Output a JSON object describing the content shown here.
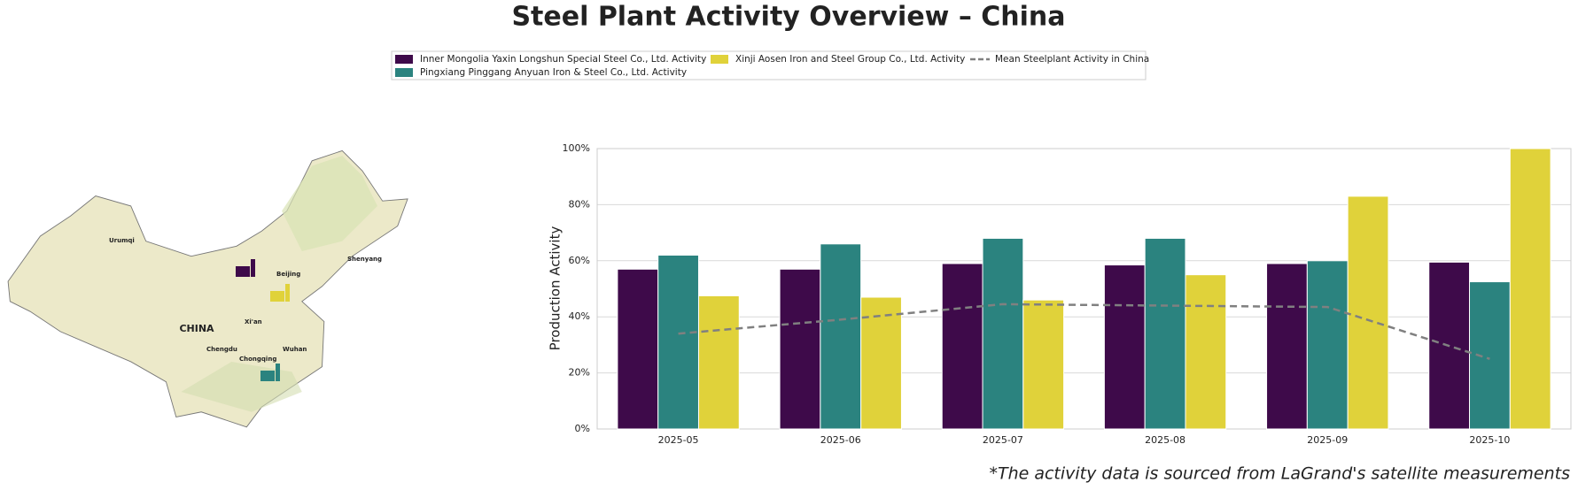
{
  "chart_data": {
    "type": "bar",
    "title": "Steel Plant Activity Overview – China",
    "y_label": "Production Activity",
    "categories": [
      "2025-05",
      "2025-06",
      "2025-07",
      "2025-08",
      "2025-09",
      "2025-10"
    ],
    "series": [
      {
        "name": "Inner Mongolia Yaxin Longshun Special Steel Co., Ltd. Activity",
        "color": "#3e0a4a",
        "values": [
          57,
          57,
          59,
          58.5,
          59,
          59.5
        ]
      },
      {
        "name": "Pingxiang Pinggang Anyuan Iron & Steel Co., Ltd. Activity",
        "color": "#2b837f",
        "values": [
          62,
          66,
          68,
          68,
          60,
          52.5
        ]
      },
      {
        "name": "Xinji Aosen Iron and Steel Group Co., Ltd. Activity",
        "color": "#e0d23a",
        "values": [
          47.5,
          47,
          46,
          55,
          83,
          100
        ]
      },
      {
        "name": "Mean Steelplant Activity in China",
        "color": "#808080",
        "type": "line",
        "dashed": true,
        "values": [
          34,
          39,
          44.5,
          44,
          43.5,
          25
        ]
      }
    ],
    "ylim": [
      0,
      100
    ],
    "yticks": [
      {
        "value": 0,
        "label": "0%"
      },
      {
        "value": 20,
        "label": "20%"
      },
      {
        "value": 40,
        "label": "40%"
      },
      {
        "value": 60,
        "label": "60%"
      },
      {
        "value": 80,
        "label": "80%"
      },
      {
        "value": 100,
        "label": "100%"
      }
    ],
    "grid": true,
    "footnote": "*The activity data is sourced from LaGrand's satellite measurements"
  },
  "map": {
    "labels": [
      "Urumqi",
      "Beijing",
      "Shenyang",
      "Xi'an",
      "CHINA",
      "Chengdu",
      "Chongqing",
      "Wuhan"
    ]
  }
}
